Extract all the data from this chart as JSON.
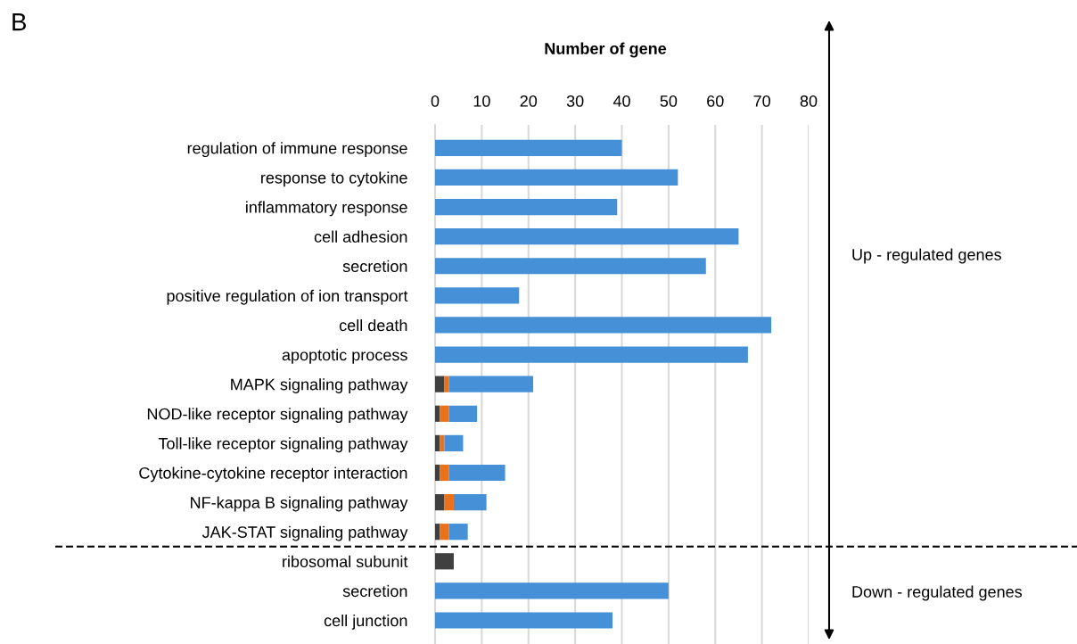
{
  "chart_data": {
    "type": "bar",
    "orientation": "horizontal",
    "stacked": true,
    "title": "Number of gene",
    "categories": [
      "regulation of immune response",
      "response to cytokine",
      "inflammatory response",
      "cell adhesion",
      "secretion",
      "positive regulation of ion transport",
      "cell death",
      "apoptotic process",
      "MAPK signaling pathway",
      "NOD-like receptor signaling pathway",
      "Toll-like receptor signaling pathway",
      "Cytokine-cytokine receptor interaction",
      "NF-kappa B signaling pathway",
      "JAK-STAT signaling pathway",
      "ribosomal subunit",
      "secretion",
      "cell junction"
    ],
    "series": [
      {
        "color": "#404040",
        "values": [
          0,
          0,
          0,
          0,
          0,
          0,
          0,
          0,
          2,
          1,
          1,
          1,
          2,
          1,
          4,
          0,
          0
        ]
      },
      {
        "color": "#e8711a",
        "values": [
          0,
          0,
          0,
          0,
          0,
          0,
          0,
          0,
          1,
          2,
          1,
          2,
          2,
          2,
          0,
          0,
          0
        ]
      },
      {
        "color": "#4590d6",
        "values": [
          40,
          52,
          39,
          65,
          58,
          18,
          72,
          67,
          18,
          6,
          4,
          12,
          7,
          4,
          0,
          50,
          38
        ]
      }
    ],
    "xlim": [
      0,
      80
    ],
    "xticks": [
      0,
      10,
      20,
      30,
      40,
      50,
      60,
      70,
      80
    ],
    "grid": "x",
    "annotations": [
      "B",
      "Up - regulated genes",
      "Down - regulated genes"
    ]
  }
}
